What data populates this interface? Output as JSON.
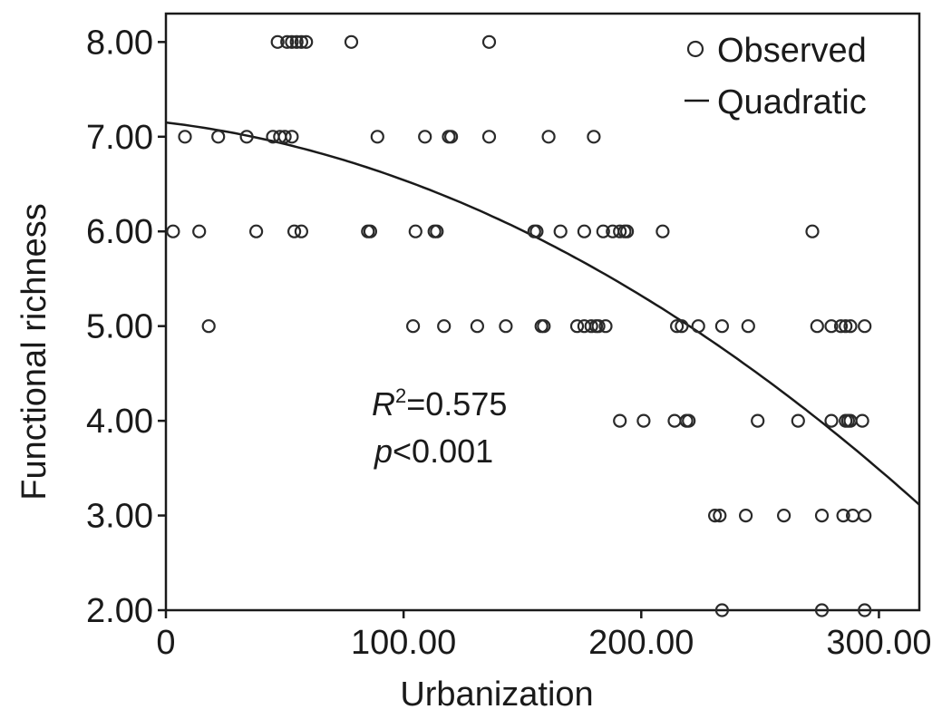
{
  "chart_data": {
    "type": "scatter",
    "xlabel": "Urbanization",
    "ylabel": "Functional richness",
    "xlim": [
      0,
      317
    ],
    "ylim": [
      2,
      8.3
    ],
    "x_ticks": [
      0,
      100,
      200,
      300
    ],
    "x_tick_labels": [
      "0",
      "100.00",
      "200.00",
      "300.00"
    ],
    "y_ticks": [
      2,
      3,
      4,
      5,
      6,
      7,
      8
    ],
    "y_tick_labels": [
      "2.00",
      "3.00",
      "4.00",
      "5.00",
      "6.00",
      "7.00",
      "8.00"
    ],
    "grid": false,
    "legend": {
      "placement": "top-right",
      "entries": [
        {
          "label": "Observed",
          "marker": "open-circle"
        },
        {
          "label": "Quadratic",
          "marker": "line"
        }
      ]
    },
    "annotation": {
      "r2_symbol": "R",
      "r2_superscript": "2",
      "r2_value": "=0.575",
      "p_symbol": "p",
      "p_value": "<0.001"
    },
    "series": [
      {
        "name": "Observed",
        "kind": "scatter",
        "points": [
          [
            47,
            8
          ],
          [
            51,
            8
          ],
          [
            53,
            8
          ],
          [
            55,
            8
          ],
          [
            57,
            8
          ],
          [
            59,
            8
          ],
          [
            78,
            8
          ],
          [
            136,
            8
          ],
          [
            8,
            7
          ],
          [
            22,
            7
          ],
          [
            34,
            7
          ],
          [
            45,
            7
          ],
          [
            48,
            7
          ],
          [
            50,
            7
          ],
          [
            53,
            7
          ],
          [
            89,
            7
          ],
          [
            109,
            7
          ],
          [
            119,
            7
          ],
          [
            120,
            7
          ],
          [
            136,
            7
          ],
          [
            161,
            7
          ],
          [
            180,
            7
          ],
          [
            3,
            6
          ],
          [
            14,
            6
          ],
          [
            38,
            6
          ],
          [
            54,
            6
          ],
          [
            57,
            6
          ],
          [
            85,
            6
          ],
          [
            86,
            6
          ],
          [
            105,
            6
          ],
          [
            113,
            6
          ],
          [
            114,
            6
          ],
          [
            155,
            6
          ],
          [
            156,
            6
          ],
          [
            166,
            6
          ],
          [
            176,
            6
          ],
          [
            184,
            6
          ],
          [
            188,
            6
          ],
          [
            191,
            6
          ],
          [
            193,
            6
          ],
          [
            194,
            6
          ],
          [
            209,
            6
          ],
          [
            272,
            6
          ],
          [
            18,
            5
          ],
          [
            104,
            5
          ],
          [
            117,
            5
          ],
          [
            131,
            5
          ],
          [
            143,
            5
          ],
          [
            158,
            5
          ],
          [
            159,
            5
          ],
          [
            173,
            5
          ],
          [
            176,
            5
          ],
          [
            179,
            5
          ],
          [
            181,
            5
          ],
          [
            182,
            5
          ],
          [
            185,
            5
          ],
          [
            215,
            5
          ],
          [
            217,
            5
          ],
          [
            224,
            5
          ],
          [
            234,
            5
          ],
          [
            245,
            5
          ],
          [
            274,
            5
          ],
          [
            280,
            5
          ],
          [
            284,
            5
          ],
          [
            286,
            5
          ],
          [
            288,
            5
          ],
          [
            294,
            5
          ],
          [
            191,
            4
          ],
          [
            201,
            4
          ],
          [
            214,
            4
          ],
          [
            219,
            4
          ],
          [
            220,
            4
          ],
          [
            249,
            4
          ],
          [
            266,
            4
          ],
          [
            280,
            4
          ],
          [
            286,
            4
          ],
          [
            287,
            4
          ],
          [
            288,
            4
          ],
          [
            293,
            4
          ],
          [
            231,
            3
          ],
          [
            233,
            3
          ],
          [
            244,
            3
          ],
          [
            260,
            3
          ],
          [
            276,
            3
          ],
          [
            285,
            3
          ],
          [
            289,
            3
          ],
          [
            294,
            3
          ],
          [
            234,
            2
          ],
          [
            276,
            2
          ],
          [
            294,
            2
          ]
        ]
      },
      {
        "name": "Quadratic",
        "kind": "line",
        "coefficients": {
          "a": 7.15,
          "b": -0.003,
          "c": -3.07e-05
        }
      }
    ]
  }
}
